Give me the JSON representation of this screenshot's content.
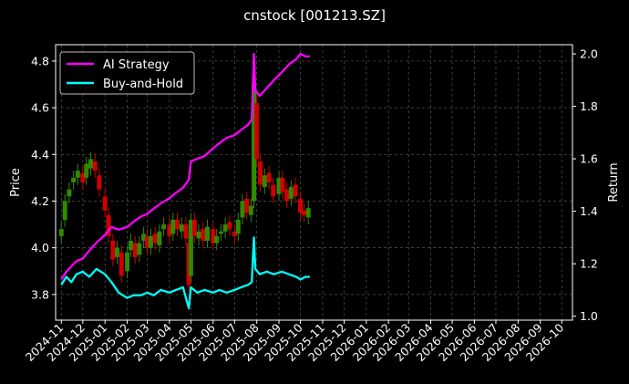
{
  "chart_data": {
    "type": "line",
    "title": "cnstock [001213.SZ]",
    "ylabel_left": "Price",
    "ylabel_right": "Return",
    "ylim_left": [
      3.69,
      4.87
    ],
    "ylim_right": [
      0.985,
      2.035
    ],
    "yticks_left": [
      "3.8",
      "4.0",
      "4.2",
      "4.4",
      "4.6",
      "4.8"
    ],
    "yticks_right": [
      "1.0",
      "1.2",
      "1.4",
      "1.6",
      "1.8",
      "2.0"
    ],
    "xticks": [
      "2024-11",
      "2024-12",
      "2025-01",
      "2025-02",
      "2025-03",
      "2025-04",
      "2025-05",
      "2025-06",
      "2025-07",
      "2025-08",
      "2025-09",
      "2025-10",
      "2025-11",
      "2025-12",
      "2026-01",
      "2026-02",
      "2026-03",
      "2026-04",
      "2026-05",
      "2026-06",
      "2026-07",
      "2026-08",
      "2026-09",
      "2026-10"
    ],
    "grid": true,
    "legend_position": "top-left",
    "background": "#000000",
    "series": [
      {
        "name": "AI Strategy",
        "axis": "right",
        "color": "#ff00ff",
        "x": [
          "2024-11-01",
          "2024-11-08",
          "2024-11-15",
          "2024-11-22",
          "2024-12-01",
          "2024-12-10",
          "2024-12-20",
          "2025-01-01",
          "2025-01-10",
          "2025-01-20",
          "2025-02-01",
          "2025-02-10",
          "2025-02-20",
          "2025-03-01",
          "2025-03-10",
          "2025-03-20",
          "2025-04-01",
          "2025-04-10",
          "2025-04-20",
          "2025-04-28",
          "2025-05-01",
          "2025-05-10",
          "2025-05-20",
          "2025-06-01",
          "2025-06-10",
          "2025-06-20",
          "2025-07-01",
          "2025-07-10",
          "2025-07-20",
          "2025-07-25",
          "2025-07-28",
          "2025-07-30",
          "2025-08-05",
          "2025-08-15",
          "2025-08-25",
          "2025-09-05",
          "2025-09-15",
          "2025-09-25",
          "2025-10-01",
          "2025-10-08",
          "2025-10-14"
        ],
        "values": [
          1.14,
          1.17,
          1.19,
          1.21,
          1.22,
          1.25,
          1.28,
          1.31,
          1.34,
          1.33,
          1.34,
          1.36,
          1.38,
          1.39,
          1.41,
          1.43,
          1.45,
          1.47,
          1.49,
          1.52,
          1.59,
          1.6,
          1.61,
          1.64,
          1.66,
          1.68,
          1.69,
          1.71,
          1.73,
          1.75,
          2.0,
          1.86,
          1.84,
          1.87,
          1.9,
          1.93,
          1.96,
          1.98,
          2.0,
          1.99,
          1.99
        ]
      },
      {
        "name": "Buy-and-Hold",
        "axis": "right",
        "color": "#00ffff",
        "x": [
          "2024-11-01",
          "2024-11-08",
          "2024-11-15",
          "2024-11-22",
          "2024-12-01",
          "2024-12-10",
          "2024-12-20",
          "2025-01-01",
          "2025-01-10",
          "2025-01-20",
          "2025-02-01",
          "2025-02-10",
          "2025-02-20",
          "2025-03-01",
          "2025-03-10",
          "2025-03-20",
          "2025-04-01",
          "2025-04-10",
          "2025-04-20",
          "2025-04-28",
          "2025-05-01",
          "2025-05-10",
          "2025-05-20",
          "2025-06-01",
          "2025-06-10",
          "2025-06-20",
          "2025-07-01",
          "2025-07-10",
          "2025-07-20",
          "2025-07-25",
          "2025-07-28",
          "2025-07-30",
          "2025-08-05",
          "2025-08-15",
          "2025-08-25",
          "2025-09-05",
          "2025-09-15",
          "2025-09-25",
          "2025-10-01",
          "2025-10-08",
          "2025-10-14"
        ],
        "values": [
          1.12,
          1.15,
          1.13,
          1.16,
          1.17,
          1.15,
          1.18,
          1.16,
          1.13,
          1.09,
          1.07,
          1.08,
          1.08,
          1.09,
          1.08,
          1.1,
          1.09,
          1.1,
          1.11,
          1.03,
          1.11,
          1.09,
          1.1,
          1.09,
          1.1,
          1.09,
          1.1,
          1.11,
          1.12,
          1.13,
          1.3,
          1.18,
          1.16,
          1.17,
          1.16,
          1.17,
          1.16,
          1.15,
          1.14,
          1.15,
          1.15
        ]
      },
      {
        "name": "",
        "type": "candlestick",
        "axis": "left",
        "up_color": "#2e8b00",
        "down_color": "#d00000",
        "x": [
          "2024-11-01",
          "2024-11-06",
          "2024-11-12",
          "2024-11-18",
          "2024-11-24",
          "2024-12-01",
          "2024-12-06",
          "2024-12-12",
          "2024-12-18",
          "2024-12-24",
          "2025-01-01",
          "2025-01-06",
          "2025-01-12",
          "2025-01-18",
          "2025-01-24",
          "2025-02-01",
          "2025-02-06",
          "2025-02-12",
          "2025-02-18",
          "2025-02-24",
          "2025-03-01",
          "2025-03-06",
          "2025-03-12",
          "2025-03-18",
          "2025-03-24",
          "2025-04-01",
          "2025-04-06",
          "2025-04-12",
          "2025-04-18",
          "2025-04-24",
          "2025-04-28",
          "2025-05-01",
          "2025-05-06",
          "2025-05-12",
          "2025-05-18",
          "2025-05-24",
          "2025-06-01",
          "2025-06-06",
          "2025-06-12",
          "2025-06-18",
          "2025-06-24",
          "2025-07-01",
          "2025-07-06",
          "2025-07-12",
          "2025-07-18",
          "2025-07-24",
          "2025-07-28",
          "2025-08-01",
          "2025-08-06",
          "2025-08-12",
          "2025-08-18",
          "2025-08-24",
          "2025-09-01",
          "2025-09-06",
          "2025-09-12",
          "2025-09-18",
          "2025-09-24",
          "2025-10-01",
          "2025-10-06",
          "2025-10-12"
        ],
        "close": [
          4.08,
          4.2,
          4.25,
          4.3,
          4.33,
          4.28,
          4.36,
          4.38,
          4.33,
          4.25,
          4.16,
          4.05,
          3.95,
          4.0,
          3.88,
          3.98,
          4.03,
          3.96,
          4.02,
          4.06,
          4.0,
          4.05,
          4.02,
          4.07,
          4.1,
          4.05,
          4.12,
          4.08,
          4.1,
          4.04,
          3.84,
          4.12,
          4.05,
          4.07,
          4.03,
          4.09,
          4.02,
          4.05,
          4.07,
          4.1,
          4.08,
          4.05,
          4.12,
          4.2,
          4.15,
          4.18,
          4.7,
          4.38,
          4.27,
          4.31,
          4.28,
          4.22,
          4.3,
          4.24,
          4.2,
          4.26,
          4.22,
          4.15,
          4.14,
          4.17
        ],
        "open": [
          4.05,
          4.12,
          4.22,
          4.28,
          4.3,
          4.32,
          4.3,
          4.34,
          4.37,
          4.31,
          4.22,
          4.14,
          4.03,
          3.96,
          3.98,
          3.9,
          3.99,
          4.02,
          3.97,
          4.03,
          4.05,
          4.0,
          4.06,
          4.01,
          4.08,
          4.1,
          4.06,
          4.12,
          4.07,
          4.1,
          4.02,
          3.88,
          4.12,
          4.04,
          4.08,
          4.03,
          4.08,
          4.02,
          4.06,
          4.07,
          4.11,
          4.07,
          4.06,
          4.13,
          4.21,
          4.14,
          4.2,
          4.62,
          4.37,
          4.26,
          4.32,
          4.27,
          4.23,
          4.3,
          4.25,
          4.21,
          4.27,
          4.21,
          4.16,
          4.13
        ]
      }
    ]
  }
}
